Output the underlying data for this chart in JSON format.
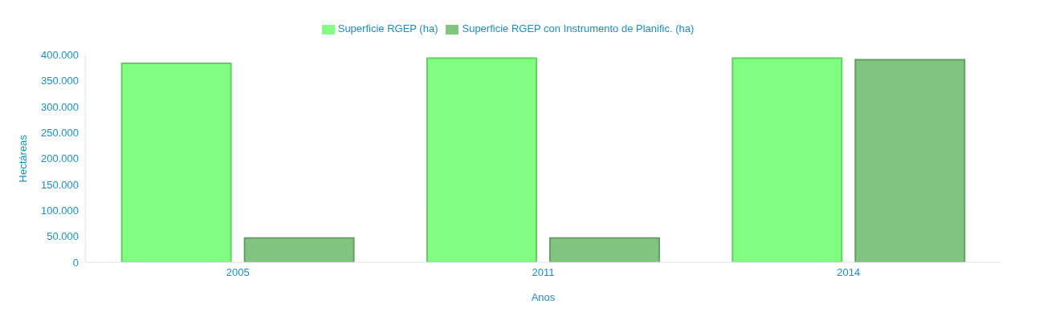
{
  "chart_data": {
    "type": "bar",
    "xlabel": "Anos",
    "ylabel": "Hectáreas",
    "categories": [
      "2005",
      "2011",
      "2014"
    ],
    "series": [
      {
        "name": "Superficie RGEP (ha)",
        "color": "#80ff80",
        "values": [
          384000,
          394000,
          394000
        ]
      },
      {
        "name": "Superficie RGEP con Instrumento de Planific. (ha)",
        "color": "#80c480",
        "values": [
          47000,
          47000,
          391000
        ]
      }
    ],
    "ylim": [
      0,
      400000
    ],
    "yticks": [
      0,
      {
        "value": 50000,
        "label": "50.000"
      },
      {
        "value": 100000,
        "label": "100.000"
      },
      {
        "value": 150000,
        "label": "150.000"
      },
      {
        "value": 200000,
        "label": "200.000"
      },
      {
        "value": 250000,
        "label": "250.000"
      },
      {
        "value": 300000,
        "label": "300.000"
      },
      {
        "value": 350000,
        "label": "350.000"
      },
      {
        "value": 400000,
        "label": "400.000"
      }
    ],
    "grid": false,
    "legend": "top"
  }
}
